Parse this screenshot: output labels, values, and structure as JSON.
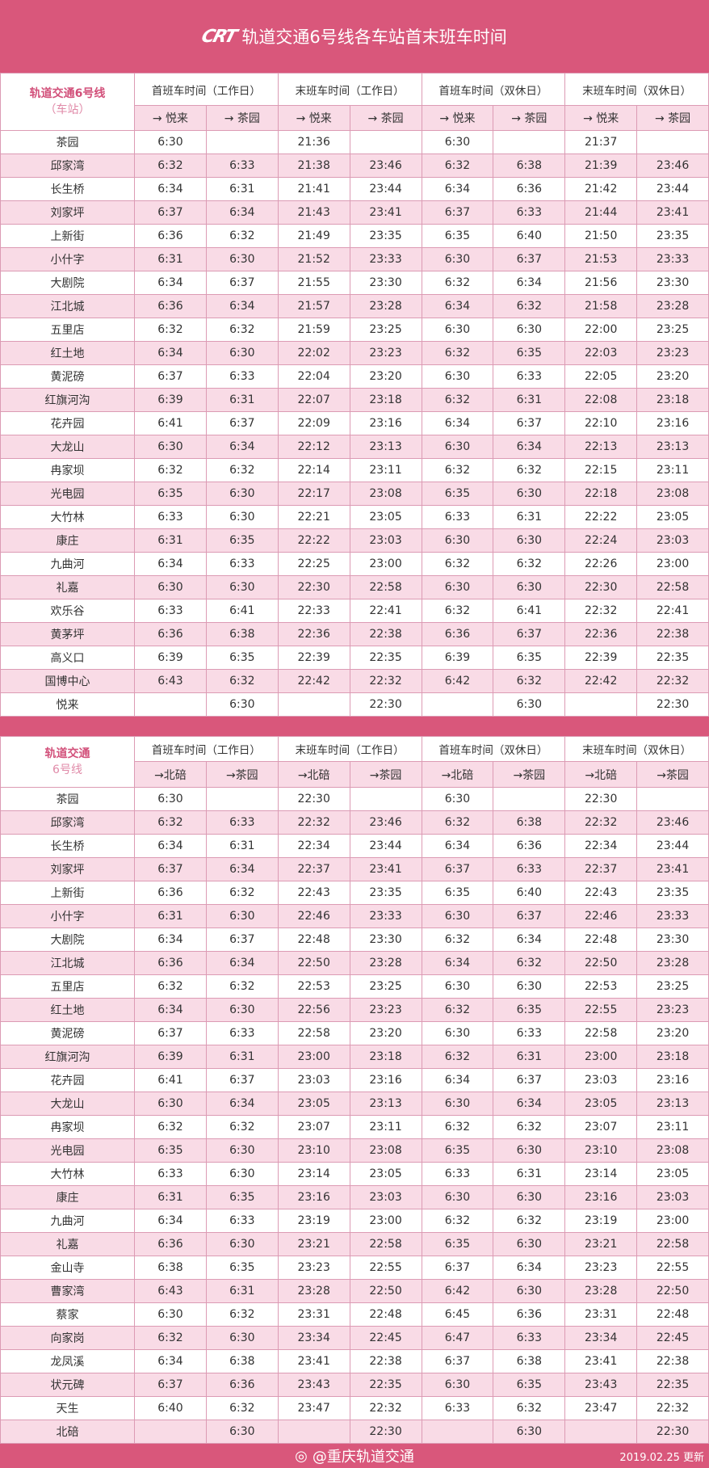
{
  "header": {
    "logo": "CRT",
    "title": "轨道交通6号线各车站首末班车时间"
  },
  "colors": {
    "brand": "#d9577b",
    "row_alt": "#f9dbe6",
    "border": "#dc9bb4",
    "station_header": "#d2507a"
  },
  "groups": [
    "首班车时间（工作日）",
    "末班车时间（工作日）",
    "首班车时间（双休日）",
    "末班车时间（双休日）"
  ],
  "table1": {
    "corner_title": "轨道交通6号线",
    "corner_sub": "（车站）",
    "directions": [
      "→ 悦来",
      "→ 茶园",
      "→ 悦来",
      "→ 茶园",
      "→ 悦来",
      "→ 茶园",
      "→ 悦来",
      "→ 茶园"
    ],
    "rows": [
      [
        "茶园",
        "6:30",
        "",
        "21:36",
        "",
        "6:30",
        "",
        "21:37",
        ""
      ],
      [
        "邱家湾",
        "6:32",
        "6:33",
        "21:38",
        "23:46",
        "6:32",
        "6:38",
        "21:39",
        "23:46"
      ],
      [
        "长生桥",
        "6:34",
        "6:31",
        "21:41",
        "23:44",
        "6:34",
        "6:36",
        "21:42",
        "23:44"
      ],
      [
        "刘家坪",
        "6:37",
        "6:34",
        "21:43",
        "23:41",
        "6:37",
        "6:33",
        "21:44",
        "23:41"
      ],
      [
        "上新街",
        "6:36",
        "6:32",
        "21:49",
        "23:35",
        "6:35",
        "6:40",
        "21:50",
        "23:35"
      ],
      [
        "小什字",
        "6:31",
        "6:30",
        "21:52",
        "23:33",
        "6:30",
        "6:37",
        "21:53",
        "23:33"
      ],
      [
        "大剧院",
        "6:34",
        "6:37",
        "21:55",
        "23:30",
        "6:32",
        "6:34",
        "21:56",
        "23:30"
      ],
      [
        "江北城",
        "6:36",
        "6:34",
        "21:57",
        "23:28",
        "6:34",
        "6:32",
        "21:58",
        "23:28"
      ],
      [
        "五里店",
        "6:32",
        "6:32",
        "21:59",
        "23:25",
        "6:30",
        "6:30",
        "22:00",
        "23:25"
      ],
      [
        "红土地",
        "6:34",
        "6:30",
        "22:02",
        "23:23",
        "6:32",
        "6:35",
        "22:03",
        "23:23"
      ],
      [
        "黄泥磅",
        "6:37",
        "6:33",
        "22:04",
        "23:20",
        "6:30",
        "6:33",
        "22:05",
        "23:20"
      ],
      [
        "红旗河沟",
        "6:39",
        "6:31",
        "22:07",
        "23:18",
        "6:32",
        "6:31",
        "22:08",
        "23:18"
      ],
      [
        "花卉园",
        "6:41",
        "6:37",
        "22:09",
        "23:16",
        "6:34",
        "6:37",
        "22:10",
        "23:16"
      ],
      [
        "大龙山",
        "6:30",
        "6:34",
        "22:12",
        "23:13",
        "6:30",
        "6:34",
        "22:13",
        "23:13"
      ],
      [
        "冉家坝",
        "6:32",
        "6:32",
        "22:14",
        "23:11",
        "6:32",
        "6:32",
        "22:15",
        "23:11"
      ],
      [
        "光电园",
        "6:35",
        "6:30",
        "22:17",
        "23:08",
        "6:35",
        "6:30",
        "22:18",
        "23:08"
      ],
      [
        "大竹林",
        "6:33",
        "6:30",
        "22:21",
        "23:05",
        "6:33",
        "6:31",
        "22:22",
        "23:05"
      ],
      [
        "康庄",
        "6:31",
        "6:35",
        "22:22",
        "23:03",
        "6:30",
        "6:30",
        "22:24",
        "23:03"
      ],
      [
        "九曲河",
        "6:34",
        "6:33",
        "22:25",
        "23:00",
        "6:32",
        "6:32",
        "22:26",
        "23:00"
      ],
      [
        "礼嘉",
        "6:30",
        "6:30",
        "22:30",
        "22:58",
        "6:30",
        "6:30",
        "22:30",
        "22:58"
      ],
      [
        "欢乐谷",
        "6:33",
        "6:41",
        "22:33",
        "22:41",
        "6:32",
        "6:41",
        "22:32",
        "22:41"
      ],
      [
        "黄茅坪",
        "6:36",
        "6:38",
        "22:36",
        "22:38",
        "6:36",
        "6:37",
        "22:36",
        "22:38"
      ],
      [
        "高义口",
        "6:39",
        "6:35",
        "22:39",
        "22:35",
        "6:39",
        "6:35",
        "22:39",
        "22:35"
      ],
      [
        "国博中心",
        "6:43",
        "6:32",
        "22:42",
        "22:32",
        "6:42",
        "6:32",
        "22:42",
        "22:32"
      ],
      [
        "悦来",
        "",
        "6:30",
        "",
        "22:30",
        "",
        "6:30",
        "",
        "22:30"
      ]
    ]
  },
  "table2": {
    "corner_title": "轨道交通",
    "corner_sub": "6号线",
    "directions": [
      "→北碚",
      "→茶园",
      "→北碚",
      "→茶园",
      "→北碚",
      "→茶园",
      "→北碚",
      "→茶园"
    ],
    "rows": [
      [
        "茶园",
        "6:30",
        "",
        "22:30",
        "",
        "6:30",
        "",
        "22:30",
        ""
      ],
      [
        "邱家湾",
        "6:32",
        "6:33",
        "22:32",
        "23:46",
        "6:32",
        "6:38",
        "22:32",
        "23:46"
      ],
      [
        "长生桥",
        "6:34",
        "6:31",
        "22:34",
        "23:44",
        "6:34",
        "6:36",
        "22:34",
        "23:44"
      ],
      [
        "刘家坪",
        "6:37",
        "6:34",
        "22:37",
        "23:41",
        "6:37",
        "6:33",
        "22:37",
        "23:41"
      ],
      [
        "上新街",
        "6:36",
        "6:32",
        "22:43",
        "23:35",
        "6:35",
        "6:40",
        "22:43",
        "23:35"
      ],
      [
        "小什字",
        "6:31",
        "6:30",
        "22:46",
        "23:33",
        "6:30",
        "6:37",
        "22:46",
        "23:33"
      ],
      [
        "大剧院",
        "6:34",
        "6:37",
        "22:48",
        "23:30",
        "6:32",
        "6:34",
        "22:48",
        "23:30"
      ],
      [
        "江北城",
        "6:36",
        "6:34",
        "22:50",
        "23:28",
        "6:34",
        "6:32",
        "22:50",
        "23:28"
      ],
      [
        "五里店",
        "6:32",
        "6:32",
        "22:53",
        "23:25",
        "6:30",
        "6:30",
        "22:53",
        "23:25"
      ],
      [
        "红土地",
        "6:34",
        "6:30",
        "22:56",
        "23:23",
        "6:32",
        "6:35",
        "22:55",
        "23:23"
      ],
      [
        "黄泥磅",
        "6:37",
        "6:33",
        "22:58",
        "23:20",
        "6:30",
        "6:33",
        "22:58",
        "23:20"
      ],
      [
        "红旗河沟",
        "6:39",
        "6:31",
        "23:00",
        "23:18",
        "6:32",
        "6:31",
        "23:00",
        "23:18"
      ],
      [
        "花卉园",
        "6:41",
        "6:37",
        "23:03",
        "23:16",
        "6:34",
        "6:37",
        "23:03",
        "23:16"
      ],
      [
        "大龙山",
        "6:30",
        "6:34",
        "23:05",
        "23:13",
        "6:30",
        "6:34",
        "23:05",
        "23:13"
      ],
      [
        "冉家坝",
        "6:32",
        "6:32",
        "23:07",
        "23:11",
        "6:32",
        "6:32",
        "23:07",
        "23:11"
      ],
      [
        "光电园",
        "6:35",
        "6:30",
        "23:10",
        "23:08",
        "6:35",
        "6:30",
        "23:10",
        "23:08"
      ],
      [
        "大竹林",
        "6:33",
        "6:30",
        "23:14",
        "23:05",
        "6:33",
        "6:31",
        "23:14",
        "23:05"
      ],
      [
        "康庄",
        "6:31",
        "6:35",
        "23:16",
        "23:03",
        "6:30",
        "6:30",
        "23:16",
        "23:03"
      ],
      [
        "九曲河",
        "6:34",
        "6:33",
        "23:19",
        "23:00",
        "6:32",
        "6:32",
        "23:19",
        "23:00"
      ],
      [
        "礼嘉",
        "6:36",
        "6:30",
        "23:21",
        "22:58",
        "6:35",
        "6:30",
        "23:21",
        "22:58"
      ],
      [
        "金山寺",
        "6:38",
        "6:35",
        "23:23",
        "22:55",
        "6:37",
        "6:34",
        "23:23",
        "22:55"
      ],
      [
        "曹家湾",
        "6:43",
        "6:31",
        "23:28",
        "22:50",
        "6:42",
        "6:30",
        "23:28",
        "22:50"
      ],
      [
        "蔡家",
        "6:30",
        "6:32",
        "23:31",
        "22:48",
        "6:45",
        "6:36",
        "23:31",
        "22:48"
      ],
      [
        "向家岗",
        "6:32",
        "6:30",
        "23:34",
        "22:45",
        "6:47",
        "6:33",
        "23:34",
        "22:45"
      ],
      [
        "龙凤溪",
        "6:34",
        "6:38",
        "23:41",
        "22:38",
        "6:37",
        "6:38",
        "23:41",
        "22:38"
      ],
      [
        "状元碑",
        "6:37",
        "6:36",
        "23:43",
        "22:35",
        "6:30",
        "6:35",
        "23:43",
        "22:35"
      ],
      [
        "天生",
        "6:40",
        "6:32",
        "23:47",
        "22:32",
        "6:33",
        "6:32",
        "23:47",
        "22:32"
      ],
      [
        "北碚",
        "",
        "6:30",
        "",
        "22:30",
        "",
        "6:30",
        "",
        "22:30"
      ]
    ]
  },
  "footer": {
    "weibo": "@重庆轨道交通",
    "updated": "2019.02.25 更新"
  }
}
